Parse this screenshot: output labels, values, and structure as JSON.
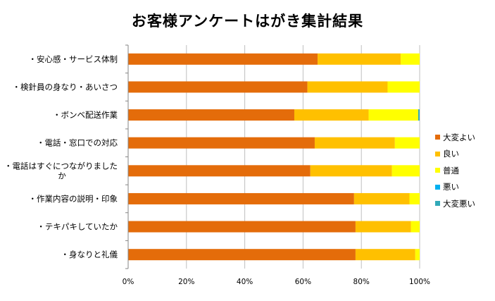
{
  "chart_data": {
    "type": "bar",
    "orientation": "horizontal",
    "stacked": true,
    "percent": true,
    "title": "お客様アンケートはがき集計結果",
    "categories": [
      "・安心感・サービス体制",
      "・検針員の身なり・あいさつ",
      "・ボンベ配送作業",
      "・電話・窓口での対応",
      "・電話はすぐにつながりましたか",
      "・作業内容の説明・印象",
      "・テキパキしていたか",
      "・身なりと礼儀"
    ],
    "category_lines": [
      [
        "・安心感・サービス体制"
      ],
      [
        "・検針員の身なり・あいさつ"
      ],
      [
        "・ボンベ配送作業"
      ],
      [
        "・電話・窓口での対応"
      ],
      [
        "・電話はすぐにつながりました",
        "か"
      ],
      [
        "・作業内容の説明・印象"
      ],
      [
        "・テキパキしていたか"
      ],
      [
        "・身なりと礼儀"
      ]
    ],
    "series": [
      {
        "name": "大変よい",
        "color": "#E46C0A",
        "values": [
          65,
          61.5,
          57,
          64,
          62.5,
          77.5,
          78,
          78
        ]
      },
      {
        "name": "良い",
        "color": "#FFC000",
        "values": [
          28.5,
          27.5,
          25.5,
          27.5,
          28,
          19,
          19,
          20.5
        ]
      },
      {
        "name": "普通",
        "color": "#FFFF00",
        "values": [
          6.5,
          11,
          17,
          8.5,
          9.5,
          3.5,
          3,
          1.5
        ]
      },
      {
        "name": "悪い",
        "color": "#00B0F0",
        "values": [
          0,
          0,
          0,
          0,
          0,
          0,
          0,
          0
        ]
      },
      {
        "name": "大変悪い",
        "color": "#31A9B8",
        "values": [
          0,
          0,
          0.5,
          0,
          0,
          0,
          0,
          0
        ]
      }
    ],
    "xlim": [
      0,
      100
    ],
    "xticks": [
      "0%",
      "20%",
      "40%",
      "60%",
      "80%",
      "100%"
    ],
    "grid": true,
    "legend_position": "right"
  }
}
